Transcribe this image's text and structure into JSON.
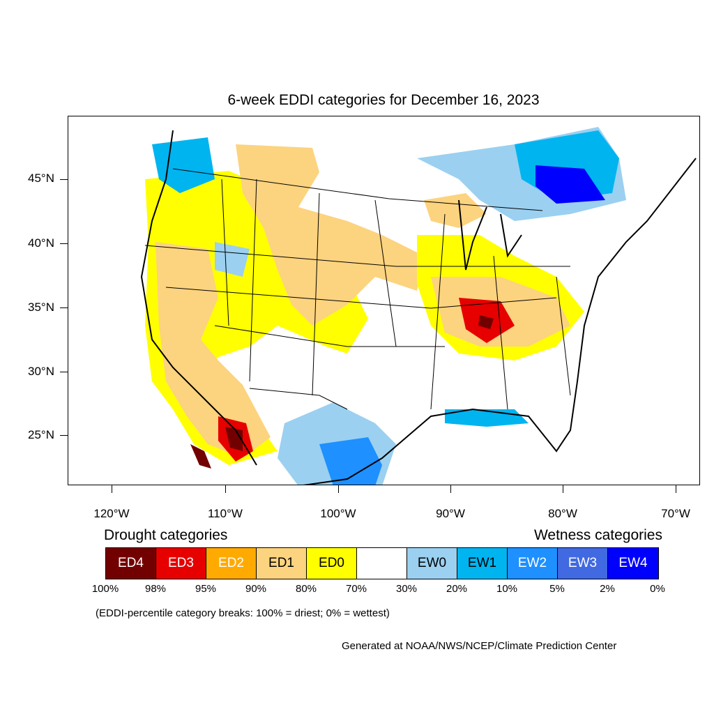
{
  "title": "6-week EDDI categories for December 16, 2023",
  "latitude_labels": [
    "45°N",
    "40°N",
    "35°N",
    "30°N",
    "25°N"
  ],
  "longitude_labels": [
    "120°W",
    "110°W",
    "100°W",
    "90°W",
    "80°W",
    "70°W"
  ],
  "legend": {
    "drought_heading": "Drought categories",
    "wetness_heading": "Wetness categories",
    "categories": [
      {
        "label": "ED4",
        "color": "#730000",
        "text_color": "#ffffff"
      },
      {
        "label": "ED3",
        "color": "#e60000",
        "text_color": "#ffffff"
      },
      {
        "label": "ED2",
        "color": "#ffaa00",
        "text_color": "#ffffff"
      },
      {
        "label": "ED1",
        "color": "#fcd37f",
        "text_color": "#000000"
      },
      {
        "label": "ED0",
        "color": "#ffff00",
        "text_color": "#000000"
      },
      {
        "label": "",
        "color": "#ffffff",
        "text_color": "#000000"
      },
      {
        "label": "EW0",
        "color": "#9bd0f0",
        "text_color": "#000000"
      },
      {
        "label": "EW1",
        "color": "#00b4f0",
        "text_color": "#000000"
      },
      {
        "label": "EW2",
        "color": "#1e90ff",
        "text_color": "#ffffff"
      },
      {
        "label": "EW3",
        "color": "#4169e1",
        "text_color": "#ffffff"
      },
      {
        "label": "EW4",
        "color": "#0000ff",
        "text_color": "#ffffff"
      }
    ],
    "percentiles": [
      "100%",
      "98%",
      "95%",
      "90%",
      "80%",
      "70%",
      "30%",
      "20%",
      "10%",
      "5%",
      "2%",
      "0%"
    ]
  },
  "breaks_note": "(EDDI-percentile category breaks: 100% = driest; 0% = wettest)",
  "credit": "Generated at NOAA/NWS/NCEP/Climate Prediction Center"
}
